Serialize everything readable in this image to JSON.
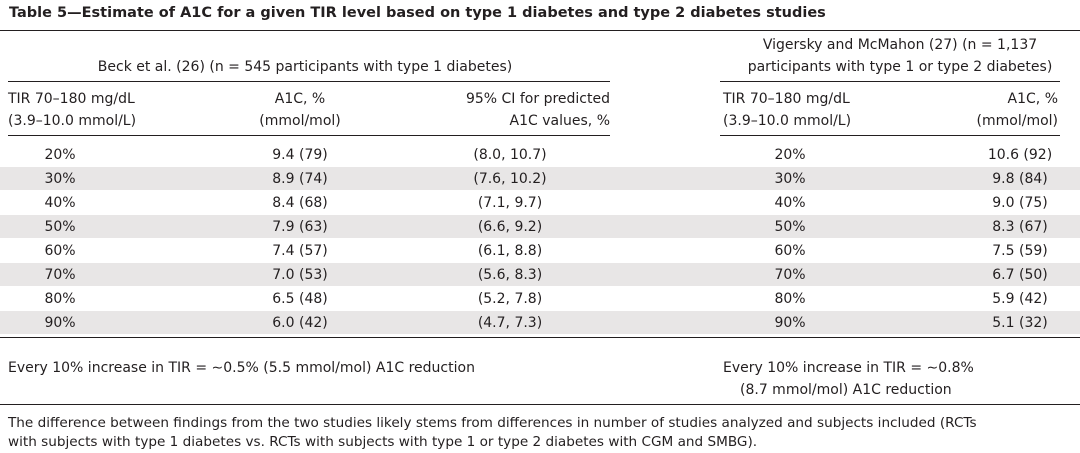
{
  "title": "Table 5—Estimate of A1C for a given TIR level based on type 1 diabetes and type 2 diabetes studies",
  "beck": {
    "heading": "Beck et al. (26) (n = 545 participants with type 1 diabetes)",
    "col_tir": [
      "TIR 70–180 mg/dL",
      "(3.9–10.0 mmol/L)"
    ],
    "col_a1c": [
      "A1C, %",
      "(mmol/mol)"
    ],
    "col_ci": [
      "95% CI for predicted",
      "A1C values, %"
    ],
    "rows": [
      {
        "tir": "20%",
        "a1c": "9.4 (79)",
        "ci": "(8.0, 10.7)"
      },
      {
        "tir": "30%",
        "a1c": "8.9 (74)",
        "ci": "(7.6, 10.2)"
      },
      {
        "tir": "40%",
        "a1c": "8.4 (68)",
        "ci": "(7.1, 9.7)"
      },
      {
        "tir": "50%",
        "a1c": "7.9 (63)",
        "ci": "(6.6, 9.2)"
      },
      {
        "tir": "60%",
        "a1c": "7.4 (57)",
        "ci": "(6.1, 8.8)"
      },
      {
        "tir": "70%",
        "a1c": "7.0 (53)",
        "ci": "(5.6, 8.3)"
      },
      {
        "tir": "80%",
        "a1c": "6.5 (48)",
        "ci": "(5.2, 7.8)"
      },
      {
        "tir": "90%",
        "a1c": "6.0 (42)",
        "ci": "(4.7, 7.3)"
      }
    ],
    "summary": "Every 10% increase in TIR = ∼0.5% (5.5 mmol/mol) A1C reduction"
  },
  "vigersky": {
    "heading": [
      "Vigersky and McMahon (27) (n = 1,137",
      "participants with type 1 or type 2 diabetes)"
    ],
    "col_tir": [
      "TIR 70–180 mg/dL",
      "(3.9–10.0 mmol/L)"
    ],
    "col_a1c": [
      "A1C, %",
      "(mmol/mol)"
    ],
    "rows": [
      {
        "tir": "20%",
        "a1c": "10.6 (92)"
      },
      {
        "tir": "30%",
        "a1c": "9.8 (84)"
      },
      {
        "tir": "40%",
        "a1c": "9.0 (75)"
      },
      {
        "tir": "50%",
        "a1c": "8.3 (67)"
      },
      {
        "tir": "60%",
        "a1c": "7.5 (59)"
      },
      {
        "tir": "70%",
        "a1c": "6.7 (50)"
      },
      {
        "tir": "80%",
        "a1c": "5.9 (42)"
      },
      {
        "tir": "90%",
        "a1c": "5.1 (32)"
      }
    ],
    "summary": [
      "Every 10% increase in TIR = ∼0.8%",
      "(8.7 mmol/mol) A1C reduction"
    ]
  },
  "footnote": [
    "The difference between findings from the two studies likely stems from differences in number of studies analyzed and subjects included (RCTs",
    "with subjects with type 1 diabetes vs. RCTs with subjects with type 1 or type 2 diabetes with CGM and SMBG)."
  ]
}
